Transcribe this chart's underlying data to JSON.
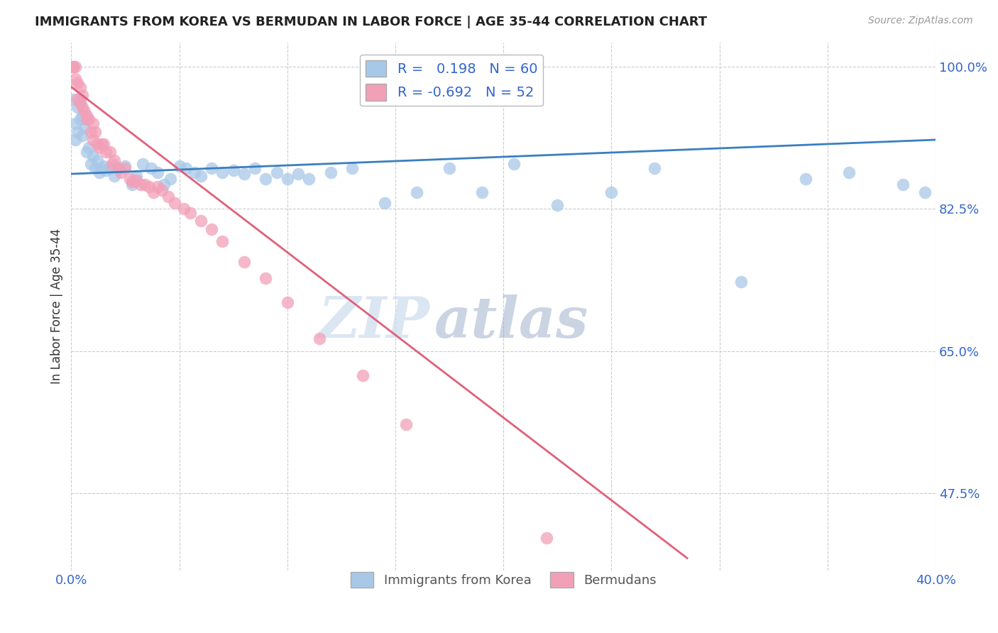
{
  "title": "IMMIGRANTS FROM KOREA VS BERMUDAN IN LABOR FORCE | AGE 35-44 CORRELATION CHART",
  "source": "Source: ZipAtlas.com",
  "ylabel": "In Labor Force | Age 35-44",
  "xlim": [
    0.0,
    0.4
  ],
  "ylim": [
    0.38,
    1.03
  ],
  "korea_R": 0.198,
  "korea_N": 60,
  "bermuda_R": -0.692,
  "bermuda_N": 52,
  "korea_color": "#a8c8e8",
  "bermuda_color": "#f2a0b8",
  "korea_line_color": "#3a7fc1",
  "bermuda_line_color": "#e0607a",
  "watermark_zip": "ZIP",
  "watermark_atlas": "atlas",
  "grid_color": "#cccccc",
  "axis_label_color": "#3366cc",
  "title_color": "#222222",
  "korea_x": [
    0.001,
    0.002,
    0.002,
    0.003,
    0.003,
    0.004,
    0.004,
    0.005,
    0.005,
    0.006,
    0.007,
    0.008,
    0.009,
    0.01,
    0.011,
    0.012,
    0.013,
    0.014,
    0.015,
    0.016,
    0.018,
    0.02,
    0.022,
    0.025,
    0.028,
    0.03,
    0.033,
    0.037,
    0.04,
    0.043,
    0.046,
    0.05,
    0.053,
    0.057,
    0.06,
    0.065,
    0.07,
    0.075,
    0.08,
    0.085,
    0.09,
    0.095,
    0.1,
    0.105,
    0.11,
    0.12,
    0.13,
    0.145,
    0.16,
    0.175,
    0.19,
    0.205,
    0.225,
    0.25,
    0.27,
    0.31,
    0.34,
    0.36,
    0.385,
    0.395
  ],
  "korea_y": [
    0.96,
    0.93,
    0.91,
    0.95,
    0.92,
    0.96,
    0.935,
    0.915,
    0.94,
    0.925,
    0.895,
    0.9,
    0.88,
    0.89,
    0.875,
    0.885,
    0.87,
    0.875,
    0.878,
    0.872,
    0.875,
    0.865,
    0.875,
    0.878,
    0.855,
    0.865,
    0.88,
    0.875,
    0.87,
    0.855,
    0.862,
    0.878,
    0.875,
    0.87,
    0.865,
    0.875,
    0.87,
    0.872,
    0.868,
    0.875,
    0.862,
    0.87,
    0.862,
    0.868,
    0.862,
    0.87,
    0.875,
    0.832,
    0.845,
    0.875,
    0.845,
    0.88,
    0.83,
    0.845,
    0.875,
    0.735,
    0.862,
    0.87,
    0.855,
    0.845
  ],
  "bermuda_x": [
    0.001,
    0.001,
    0.002,
    0.002,
    0.003,
    0.003,
    0.004,
    0.004,
    0.005,
    0.005,
    0.006,
    0.007,
    0.007,
    0.008,
    0.009,
    0.01,
    0.01,
    0.011,
    0.012,
    0.013,
    0.014,
    0.015,
    0.016,
    0.018,
    0.019,
    0.02,
    0.022,
    0.023,
    0.025,
    0.027,
    0.028,
    0.03,
    0.032,
    0.034,
    0.036,
    0.038,
    0.04,
    0.042,
    0.045,
    0.048,
    0.052,
    0.055,
    0.06,
    0.065,
    0.07,
    0.08,
    0.09,
    0.1,
    0.115,
    0.135,
    0.155,
    0.22
  ],
  "bermuda_y": [
    1.0,
    1.0,
    1.0,
    0.985,
    0.98,
    0.96,
    0.975,
    0.955,
    0.965,
    0.95,
    0.945,
    0.94,
    0.935,
    0.935,
    0.92,
    0.93,
    0.91,
    0.92,
    0.905,
    0.9,
    0.905,
    0.905,
    0.895,
    0.895,
    0.88,
    0.885,
    0.875,
    0.87,
    0.875,
    0.862,
    0.858,
    0.86,
    0.855,
    0.855,
    0.852,
    0.845,
    0.852,
    0.848,
    0.84,
    0.832,
    0.825,
    0.82,
    0.81,
    0.8,
    0.785,
    0.76,
    0.74,
    0.71,
    0.665,
    0.62,
    0.56,
    0.42
  ],
  "korea_trendline_x": [
    0.0,
    0.4
  ],
  "korea_trendline_y": [
    0.868,
    0.91
  ],
  "bermuda_trendline_x0": 0.0,
  "bermuda_trendline_y0": 0.975,
  "bermuda_trendline_x1": 0.285,
  "bermuda_trendline_y1": 0.395
}
